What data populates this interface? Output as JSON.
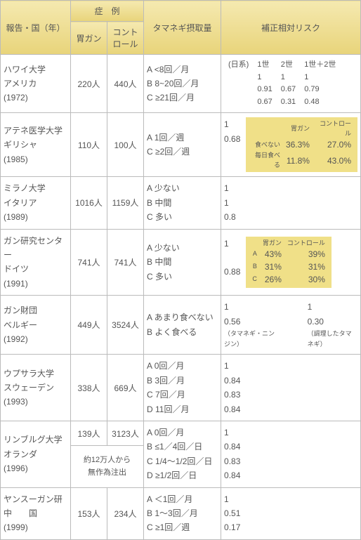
{
  "headers": {
    "report": "報告・国（年）",
    "cases": "症　例",
    "gastric_cancer": "胃ガン",
    "control": "コント\nロール",
    "intake": "タマネギ摂取量",
    "risk": "補正相対リスク"
  },
  "rows": [
    {
      "report": "ハワイ大学\nアメリカ\n(1972)",
      "gc": "220人",
      "ctrl": "440人",
      "intake": "A <8回／月\nB 8~20回／月\nC ≥21回／月",
      "risk_type": "hawaii",
      "hawaii": {
        "label": "(日系)",
        "cols": [
          "1世",
          "2世",
          "1世＋2世"
        ],
        "rows": [
          [
            "1",
            "1",
            "1"
          ],
          [
            "0.91",
            "0.67",
            "0.79"
          ],
          [
            "0.67",
            "0.31",
            "0.48"
          ]
        ]
      }
    },
    {
      "report": "アテネ医学大学\nギリシャ\n(1985)",
      "gc": "110人",
      "ctrl": "100人",
      "intake": "A 1回／週\nC ≥2回／週",
      "risk_type": "greece",
      "risk_left": "1\n0.68",
      "box": {
        "head": [
          "",
          "胃ガン",
          "コントロール"
        ],
        "r1": [
          "食べない",
          "36.3%",
          "27.0%"
        ],
        "r2": [
          "毎日食べる",
          "11.8%",
          "43.0%"
        ]
      }
    },
    {
      "report": "ミラノ大学\nイタリア\n(1989)",
      "gc": "1016人",
      "ctrl": "1159人",
      "intake": "A 少ない\nB 中間\nC 多い",
      "risk_type": "plain",
      "risk_left": "1\n1\n0.8"
    },
    {
      "report": "ガン研究センター\nドイツ\n(1991)",
      "gc": "741人",
      "ctrl": "741人",
      "intake": "A 少ない\nB 中間\nC 多い",
      "risk_type": "germany",
      "risk_left": "1\n\n0.88",
      "box": {
        "head": [
          "",
          "胃ガン",
          "コントロール"
        ],
        "r1": [
          "A",
          "43%",
          "39%"
        ],
        "r2": [
          "B",
          "31%",
          "31%"
        ],
        "r3": [
          "C",
          "26%",
          "30%"
        ]
      }
    },
    {
      "report": "ガン財団\nベルギー\n(1992)",
      "gc": "449人",
      "ctrl": "3524人",
      "intake": "A あまり食べない\nB よく食べる",
      "risk_type": "belgium",
      "b_col1": "1\n0.56",
      "b_col2": "1\n0.30",
      "b_note1": "（タマネギ・ニンジン）",
      "b_note2": "（調理したタマネギ）"
    },
    {
      "report": "ウプサラ大学\nスウェーデン\n(1993)",
      "gc": "338人",
      "ctrl": "669人",
      "intake": "A 0回／月\nB 3回／月\nC 7回／月\nD 11回／月",
      "risk_type": "plain",
      "risk_left": "1\n0.84\n0.83\n0.84"
    },
    {
      "report": "リンブルグ大学\nオランダ\n(1996)",
      "gc": "139人",
      "ctrl": "3123人",
      "sub_note": "約12万人から\n無作為注出",
      "intake": "A 0回／月\nB ≤1／4回／日\nC 1/4〜1/2回／日\nD ≥1/2回／日",
      "risk_type": "plain",
      "risk_left": "1\n0.84\n0.83\n0.84",
      "has_sub": true
    },
    {
      "report": "ヤンスーガン研\n中　　国\n(1999)",
      "gc": "153人",
      "ctrl": "234人",
      "intake": "A ＜1回／月\nB 1〜3回／月\nC ≥1回／週",
      "risk_type": "plain",
      "risk_left": "1\n0.51\n0.17"
    }
  ]
}
